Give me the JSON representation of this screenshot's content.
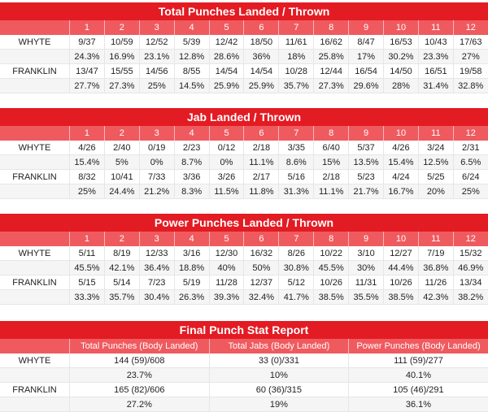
{
  "rounds": [
    "1",
    "2",
    "3",
    "4",
    "5",
    "6",
    "7",
    "8",
    "9",
    "10",
    "11",
    "12"
  ],
  "total": {
    "title": "Total Punches Landed / Thrown",
    "fighters": [
      {
        "name": "WHYTE",
        "landed": [
          "9/37",
          "10/59",
          "12/52",
          "5/39",
          "12/42",
          "18/50",
          "11/61",
          "16/62",
          "8/47",
          "16/53",
          "10/43",
          "17/63"
        ],
        "pct": [
          "24.3%",
          "16.9%",
          "23.1%",
          "12.8%",
          "28.6%",
          "36%",
          "18%",
          "25.8%",
          "17%",
          "30.2%",
          "23.3%",
          "27%"
        ]
      },
      {
        "name": "FRANKLIN",
        "landed": [
          "13/47",
          "15/55",
          "14/56",
          "8/55",
          "14/54",
          "14/54",
          "10/28",
          "12/44",
          "16/54",
          "14/50",
          "16/51",
          "19/58"
        ],
        "pct": [
          "27.7%",
          "27.3%",
          "25%",
          "14.5%",
          "25.9%",
          "25.9%",
          "35.7%",
          "27.3%",
          "29.6%",
          "28%",
          "31.4%",
          "32.8%"
        ]
      }
    ]
  },
  "jab": {
    "title": "Jab Landed / Thrown",
    "fighters": [
      {
        "name": "WHYTE",
        "landed": [
          "4/26",
          "2/40",
          "0/19",
          "2/23",
          "0/12",
          "2/18",
          "3/35",
          "6/40",
          "5/37",
          "4/26",
          "3/24",
          "2/31"
        ],
        "pct": [
          "15.4%",
          "5%",
          "0%",
          "8.7%",
          "0%",
          "11.1%",
          "8.6%",
          "15%",
          "13.5%",
          "15.4%",
          "12.5%",
          "6.5%"
        ]
      },
      {
        "name": "FRANKLIN",
        "landed": [
          "8/32",
          "10/41",
          "7/33",
          "3/36",
          "3/26",
          "2/17",
          "5/16",
          "2/18",
          "5/23",
          "4/24",
          "5/25",
          "6/24"
        ],
        "pct": [
          "25%",
          "24.4%",
          "21.2%",
          "8.3%",
          "11.5%",
          "11.8%",
          "31.3%",
          "11.1%",
          "21.7%",
          "16.7%",
          "20%",
          "25%"
        ]
      }
    ]
  },
  "power": {
    "title": "Power Punches Landed / Thrown",
    "fighters": [
      {
        "name": "WHYTE",
        "landed": [
          "5/11",
          "8/19",
          "12/33",
          "3/16",
          "12/30",
          "16/32",
          "8/26",
          "10/22",
          "3/10",
          "12/27",
          "7/19",
          "15/32"
        ],
        "pct": [
          "45.5%",
          "42.1%",
          "36.4%",
          "18.8%",
          "40%",
          "50%",
          "30.8%",
          "45.5%",
          "30%",
          "44.4%",
          "36.8%",
          "46.9%"
        ]
      },
      {
        "name": "FRANKLIN",
        "landed": [
          "5/15",
          "5/14",
          "7/23",
          "5/19",
          "11/28",
          "12/37",
          "5/12",
          "10/26",
          "11/31",
          "10/26",
          "11/26",
          "13/34"
        ],
        "pct": [
          "33.3%",
          "35.7%",
          "30.4%",
          "26.3%",
          "39.3%",
          "32.4%",
          "41.7%",
          "38.5%",
          "35.5%",
          "38.5%",
          "42.3%",
          "38.2%"
        ]
      }
    ]
  },
  "final": {
    "title": "Final Punch Stat Report",
    "headers": [
      "Total Punches (Body Landed)",
      "Total Jabs (Body Landed)",
      "Power Punches (Body Landed)"
    ],
    "fighters": [
      {
        "name": "WHYTE",
        "vals": [
          "144 (59)/608",
          "33 (0)/331",
          "111 (59)/277"
        ],
        "pct": [
          "23.7%",
          "10%",
          "40.1%"
        ]
      },
      {
        "name": "FRANKLIN",
        "vals": [
          "165 (82)/606",
          "60 (36)/315",
          "105 (46)/291"
        ],
        "pct": [
          "27.2%",
          "19%",
          "36.1%"
        ]
      }
    ]
  }
}
